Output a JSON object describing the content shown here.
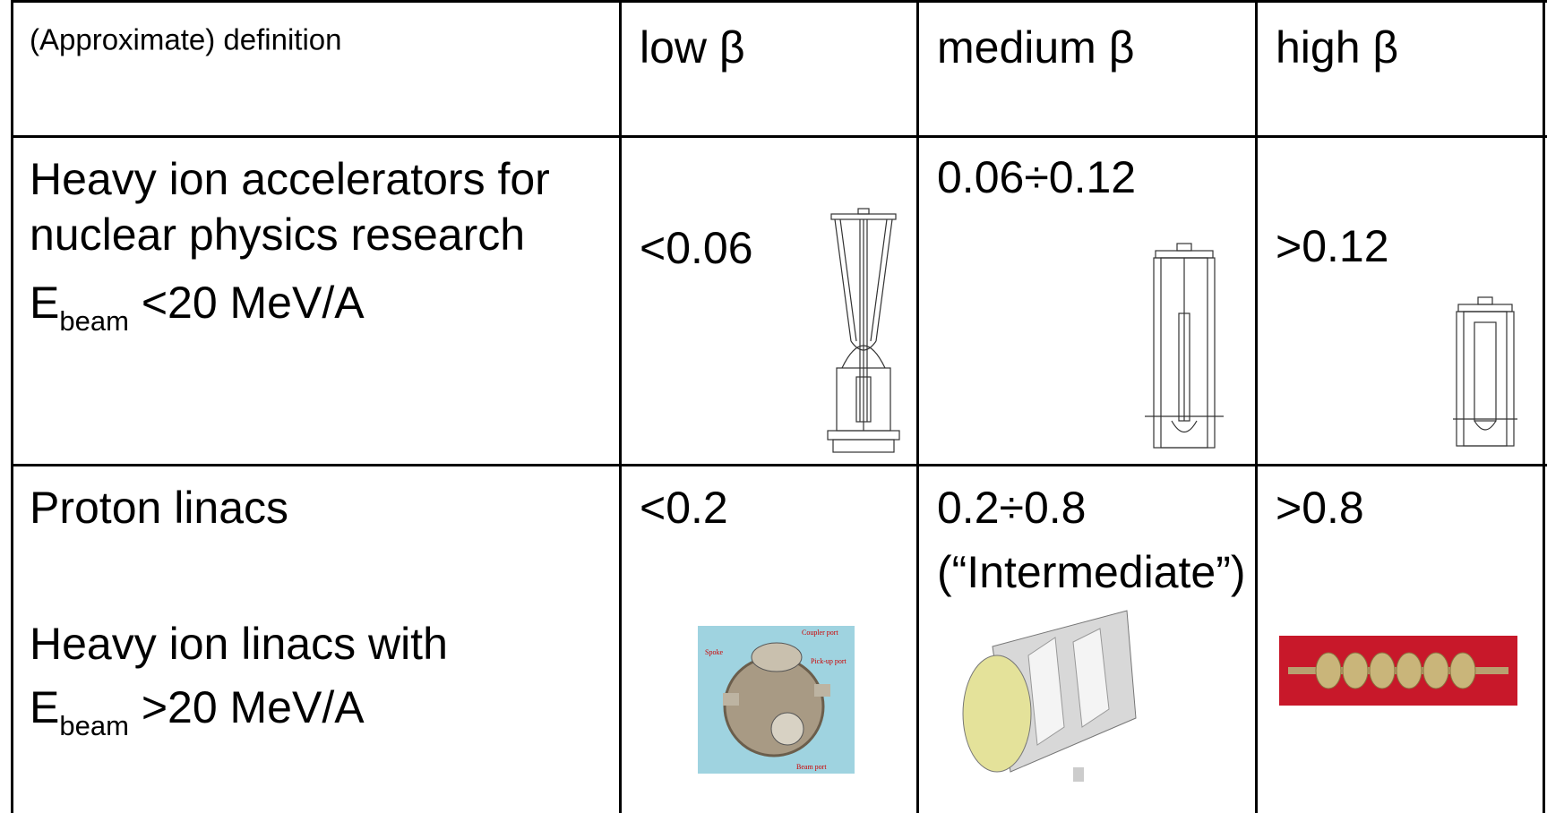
{
  "table": {
    "header": [
      "(Approximate) definition",
      "low β",
      "medium β",
      "high β"
    ],
    "rows": [
      {
        "definition": {
          "lines": [
            "Heavy ion accelerators for",
            "nuclear physics research"
          ],
          "energy": {
            "symbol": "E",
            "subscript": "beam",
            "limit": "<20 MeV/A"
          }
        },
        "low": "<0.06",
        "medium": [
          "0.06÷0.12"
        ],
        "high": ">0.12"
      },
      {
        "definition": {
          "lines": [
            "Proton linacs",
            "Heavy ion linacs with"
          ],
          "energy": {
            "symbol": "E",
            "subscript": "beam",
            "limit": ">20 MeV/A"
          }
        },
        "low": "<0.2",
        "medium": [
          "0.2÷0.8",
          "(“Intermediate”)"
        ],
        "high": ">0.8"
      }
    ]
  },
  "spoke_photo_labels": [
    "Coupler port",
    "Spoke",
    "Pick-up port",
    "Beam port"
  ]
}
